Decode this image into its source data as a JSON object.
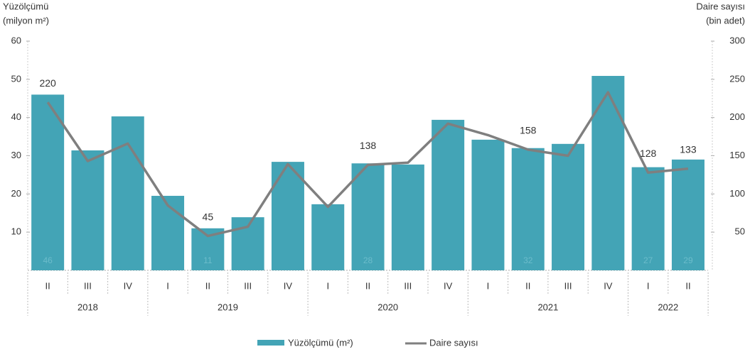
{
  "chart_data": {
    "type": "bar-line",
    "y_title": [
      "Yüzölçümü",
      "(milyon m²)"
    ],
    "y2_title": [
      "Daire sayısı",
      "(bin adet)"
    ],
    "groups": [
      {
        "name": "2018",
        "categories": [
          "II",
          "III",
          "IV"
        ]
      },
      {
        "name": "2019",
        "categories": [
          "I",
          "II",
          "III",
          "IV"
        ]
      },
      {
        "name": "2020",
        "categories": [
          "I",
          "II",
          "III",
          "IV"
        ]
      },
      {
        "name": "2021",
        "categories": [
          "I",
          "II",
          "III",
          "IV"
        ]
      },
      {
        "name": "2022",
        "categories": [
          "I",
          "II"
        ]
      }
    ],
    "series": [
      {
        "name": "Yüzölçümü (m²)",
        "type": "bar",
        "color": "#43a4b6",
        "values": [
          46,
          31.4,
          40.3,
          19.5,
          11,
          13.9,
          28.4,
          17.3,
          28,
          27.7,
          39.4,
          34.2,
          32,
          33.1,
          50.9,
          27,
          29
        ],
        "value_labels": [
          "46",
          null,
          null,
          null,
          "11",
          null,
          null,
          null,
          "28",
          null,
          null,
          null,
          "32",
          null,
          null,
          "27",
          "29"
        ]
      },
      {
        "name": "Daire sayısı",
        "type": "line",
        "axis": "y2",
        "color": "#7f7f7f",
        "values": [
          220,
          143,
          166,
          85,
          45,
          57,
          139,
          83,
          138,
          141,
          192,
          177,
          158,
          150,
          233,
          128,
          133
        ],
        "value_labels": [
          "220",
          null,
          null,
          null,
          "45",
          null,
          null,
          null,
          "138",
          null,
          null,
          null,
          "158",
          null,
          null,
          "128",
          "133"
        ]
      }
    ],
    "ylim": [
      0,
      60
    ],
    "yticks": [
      10,
      20,
      30,
      40,
      50,
      60
    ],
    "y2lim": [
      0,
      300
    ],
    "y2ticks": [
      50,
      100,
      150,
      200,
      250,
      300
    ]
  }
}
